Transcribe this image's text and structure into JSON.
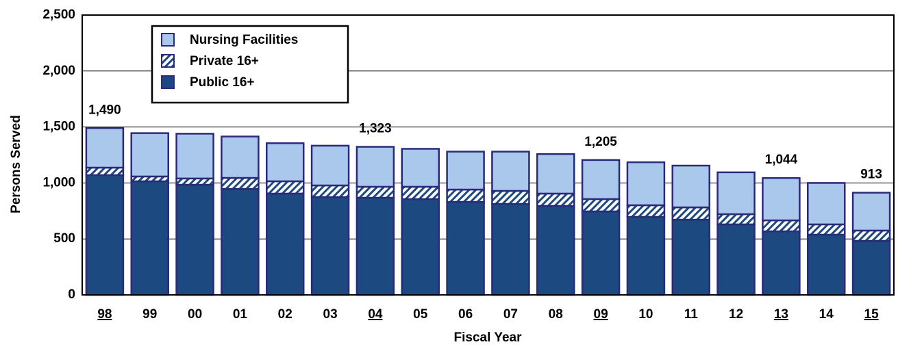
{
  "chart_data": {
    "type": "stacked_bar",
    "x_label": "Fiscal Year",
    "y_label": "Persons Served",
    "categories": [
      "98",
      "99",
      "00",
      "01",
      "02",
      "03",
      "04",
      "05",
      "06",
      "07",
      "08",
      "09",
      "10",
      "11",
      "12",
      "13",
      "14",
      "15"
    ],
    "series": [
      {
        "name": "Public 16+",
        "color": "#1c4a80",
        "pattern": "solid",
        "values": [
          1070,
          1015,
          984,
          947,
          905,
          874,
          868,
          856,
          831,
          813,
          795,
          746,
          697,
          672,
          630,
          568,
          538,
          483
        ]
      },
      {
        "name": "Private 16+",
        "color": "#1c4a80",
        "pattern": "hatch",
        "values": [
          67,
          43,
          56,
          98,
          110,
          104,
          98,
          110,
          110,
          116,
          110,
          110,
          104,
          110,
          91,
          98,
          92,
          92
        ]
      },
      {
        "name": "Nursing Facilities",
        "color": "#a9c8ec",
        "pattern": "solid",
        "values": [
          353,
          387,
          400,
          370,
          340,
          355,
          357,
          339,
          339,
          351,
          353,
          349,
          384,
          373,
          374,
          378,
          370,
          338
        ]
      }
    ],
    "annotations": [
      {
        "x": "98",
        "value": 1490,
        "label": "1,490"
      },
      {
        "x": "04",
        "value": 1323,
        "label": "1,323"
      },
      {
        "x": "09",
        "value": 1205,
        "label": "1,205"
      },
      {
        "x": "13",
        "value": 1044,
        "label": "1,044"
      },
      {
        "x": "15",
        "value": 913,
        "label": "913"
      }
    ],
    "ylim": [
      0,
      2500
    ],
    "yticks": [
      0,
      500,
      {
        "value": 1000,
        "label": "1,000"
      },
      {
        "value": 1500,
        "label": "1,500"
      },
      {
        "value": 2000,
        "label": "2,000"
      },
      {
        "value": 2500,
        "label": "2,500"
      }
    ],
    "grid": true,
    "legend": "upper left"
  }
}
